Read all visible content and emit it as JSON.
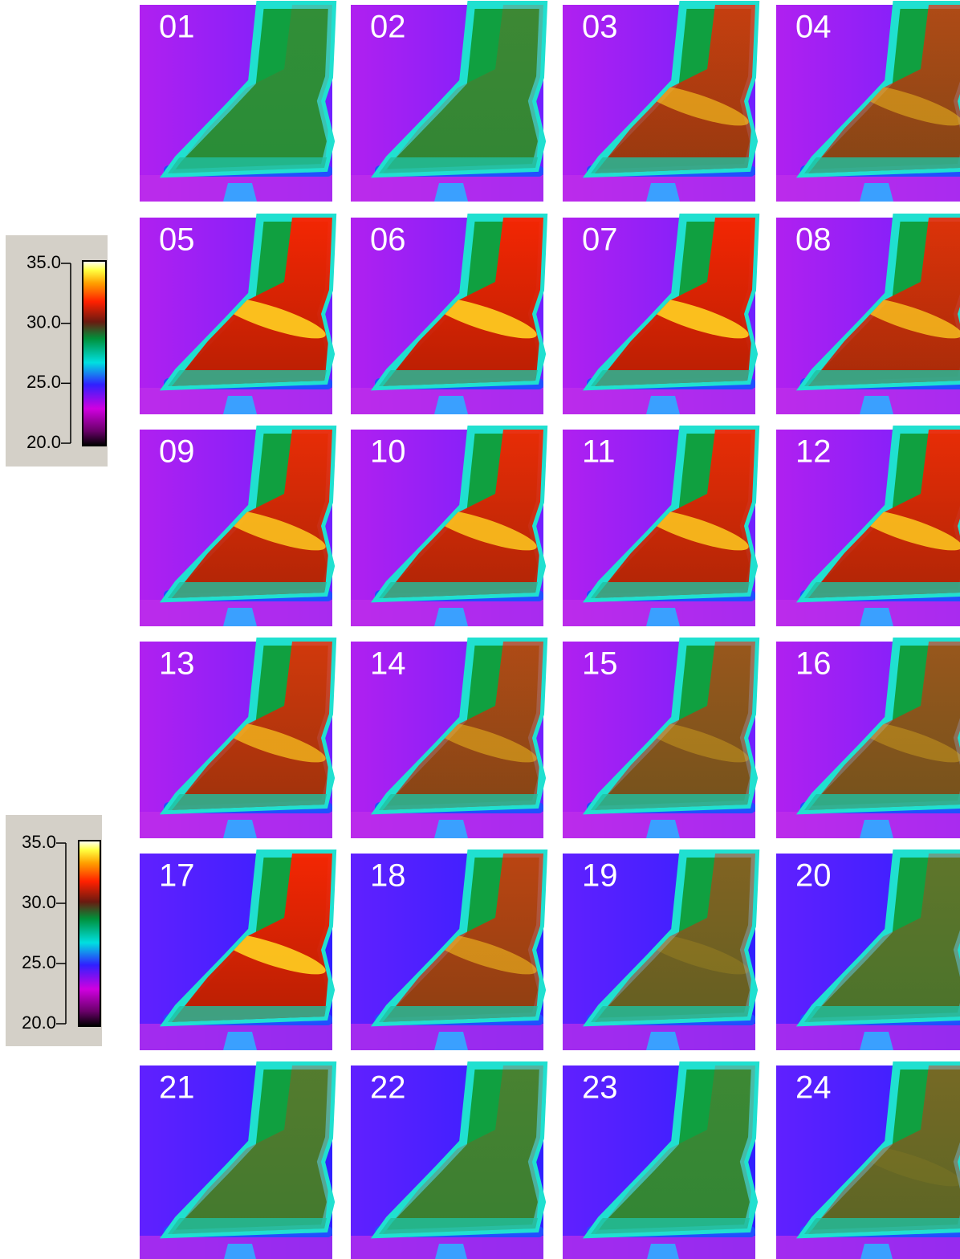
{
  "colorbars": [
    {
      "ticks": [
        {
          "value": 35,
          "label": "35.0"
        },
        {
          "value": 30,
          "label": "30.0"
        },
        {
          "value": 25,
          "label": "25.0"
        },
        {
          "value": 20,
          "label": "20.0"
        }
      ]
    },
    {
      "ticks": [
        {
          "value": 35,
          "label": "35.0"
        },
        {
          "value": 30,
          "label": "30.0"
        },
        {
          "value": 25,
          "label": "25.0"
        },
        {
          "value": 20,
          "label": "20.0"
        }
      ]
    }
  ],
  "panels": [
    {
      "label": "01"
    },
    {
      "label": "02"
    },
    {
      "label": "03"
    },
    {
      "label": "04"
    },
    {
      "label": "05"
    },
    {
      "label": "06"
    },
    {
      "label": "07"
    },
    {
      "label": "08"
    },
    {
      "label": "09"
    },
    {
      "label": "10"
    },
    {
      "label": "11"
    },
    {
      "label": "12"
    },
    {
      "label": "13"
    },
    {
      "label": "14"
    },
    {
      "label": "15"
    },
    {
      "label": "16"
    },
    {
      "label": "17"
    },
    {
      "label": "18"
    },
    {
      "label": "19"
    },
    {
      "label": "20"
    },
    {
      "label": "21"
    },
    {
      "label": "22"
    },
    {
      "label": "23"
    },
    {
      "label": "24"
    }
  ]
}
